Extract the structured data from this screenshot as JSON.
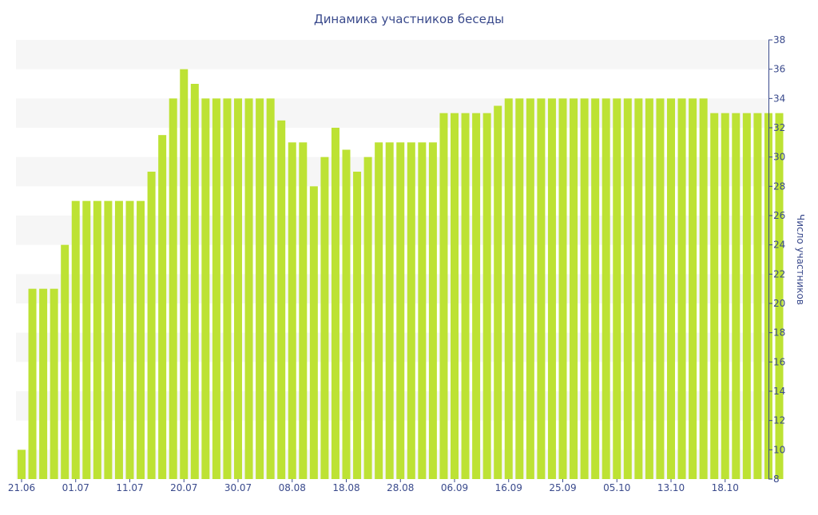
{
  "chart_data": {
    "type": "bar",
    "title": "Динамика участников беседы",
    "xlabel": "",
    "ylabel": "Число участников",
    "ylim": [
      8,
      38
    ],
    "yticks": [
      8,
      10,
      12,
      14,
      16,
      18,
      20,
      22,
      24,
      26,
      28,
      30,
      32,
      34,
      36,
      38
    ],
    "y_axis_side": "right",
    "grid": "alternating horizontal bands",
    "bar_color": "#bde234",
    "band_color": "#f6f6f6",
    "text_color": "#3a4a8c",
    "x_tick_labels": [
      {
        "index": 0,
        "label": "21.06"
      },
      {
        "index": 5,
        "label": "01.07"
      },
      {
        "index": 10,
        "label": "11.07"
      },
      {
        "index": 15,
        "label": "20.07"
      },
      {
        "index": 20,
        "label": "30.07"
      },
      {
        "index": 25,
        "label": "08.08"
      },
      {
        "index": 30,
        "label": "18.08"
      },
      {
        "index": 35,
        "label": "28.08"
      },
      {
        "index": 40,
        "label": "06.09"
      },
      {
        "index": 45,
        "label": "16.09"
      },
      {
        "index": 50,
        "label": "25.09"
      },
      {
        "index": 55,
        "label": "05.10"
      },
      {
        "index": 60,
        "label": "13.10"
      },
      {
        "index": 65,
        "label": "18.10"
      }
    ],
    "values": [
      10,
      21,
      21,
      21,
      24,
      27,
      27,
      27,
      27,
      27,
      27,
      27,
      29,
      31.5,
      34,
      36,
      35,
      34,
      34,
      34,
      34,
      34,
      34,
      34,
      32.5,
      31,
      31,
      28,
      30,
      32,
      30.5,
      29,
      30,
      31,
      31,
      31,
      31,
      31,
      31,
      33,
      33,
      33,
      33,
      33,
      33.5,
      34,
      34,
      34,
      34,
      34,
      34,
      34,
      34,
      34,
      34,
      34,
      34,
      34,
      34,
      34,
      34,
      34,
      34,
      34,
      33,
      33,
      33,
      33,
      33,
      33,
      33
    ]
  }
}
